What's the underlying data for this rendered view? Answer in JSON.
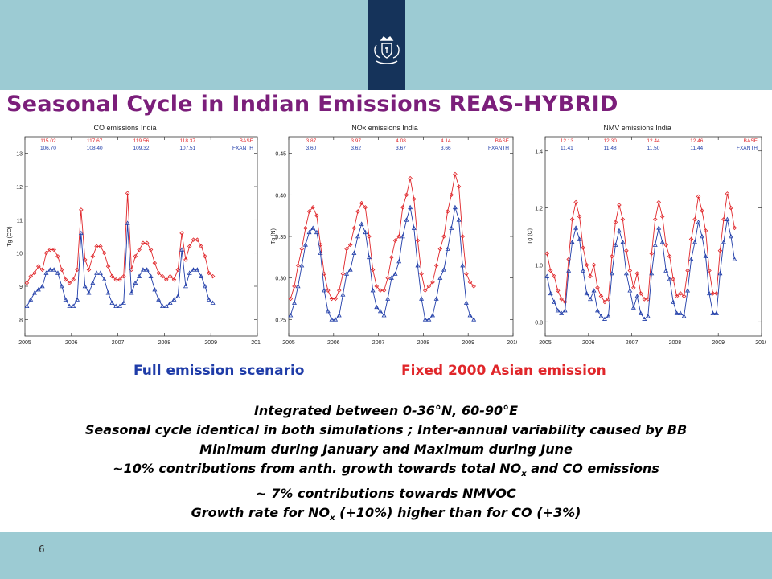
{
  "title": "Seasonal Cycle in Indian Emissions REAS-HYBRID",
  "page_number": "6",
  "legend": {
    "full": "Full emission scenario",
    "fixed": "Fixed 2000 Asian emission"
  },
  "notes": [
    "Integrated between 0-36°N, 60-90°E",
    "Seasonal cycle identical in both simulations ; Inter-annual variability caused by BB",
    "Minimum during January and Maximum during June",
    [
      "~10% contributions from anth. growth towards total NO",
      "x",
      " and CO emissions"
    ],
    "~ 7% contributions towards NMVOC",
    [
      "Growth rate for NO",
      "x",
      " (+10%) higher than for CO (+3%)"
    ]
  ],
  "colors": {
    "title": "#7b1e7a",
    "base": "#e0262a",
    "fxanth": "#1f3ca8",
    "band": "#9ccbd3",
    "logo": "#15335a"
  },
  "icons": {
    "logo": "royal-coat-of-arms-icon"
  },
  "chart_data": [
    {
      "type": "line",
      "title": "CO emissions India",
      "ylabel": "Tg (CO)",
      "xlim": [
        2005,
        2010
      ],
      "ylim": [
        7.5,
        13.5
      ],
      "yticks": [
        8,
        9,
        10,
        11,
        12,
        13
      ],
      "xticks": [
        2005,
        2006,
        2007,
        2008,
        2009,
        2010
      ],
      "annual_totals": {
        "BASE": [
          "115.02",
          "117.67",
          "119.56",
          "118.37"
        ],
        "FXANTH": [
          "106.70",
          "108.40",
          "109.32",
          "107.51"
        ]
      },
      "series": [
        {
          "name": "BASE",
          "values": [
            9.1,
            9.3,
            9.4,
            9.6,
            9.5,
            10.0,
            10.1,
            10.1,
            9.9,
            9.5,
            9.2,
            9.1,
            9.2,
            9.5,
            11.3,
            9.8,
            9.5,
            9.9,
            10.2,
            10.2,
            10.0,
            9.6,
            9.3,
            9.2,
            9.2,
            9.3,
            11.8,
            9.5,
            9.9,
            10.1,
            10.3,
            10.3,
            10.1,
            9.7,
            9.4,
            9.3,
            9.2,
            9.3,
            9.2,
            9.5,
            10.6,
            9.8,
            10.2,
            10.4,
            10.4,
            10.2,
            9.9,
            9.4,
            9.3
          ]
        },
        {
          "name": "FXANTH",
          "values": [
            8.4,
            8.6,
            8.8,
            8.9,
            9.0,
            9.4,
            9.5,
            9.5,
            9.4,
            9.0,
            8.6,
            8.4,
            8.4,
            8.6,
            10.6,
            9.0,
            8.8,
            9.1,
            9.4,
            9.4,
            9.2,
            8.8,
            8.5,
            8.4,
            8.4,
            8.5,
            10.9,
            8.8,
            9.1,
            9.3,
            9.5,
            9.5,
            9.3,
            8.9,
            8.6,
            8.4,
            8.4,
            8.5,
            8.6,
            8.7,
            10.1,
            9.0,
            9.4,
            9.5,
            9.5,
            9.3,
            9.0,
            8.6,
            8.5
          ]
        }
      ]
    },
    {
      "type": "line",
      "title": "NOx emissions India",
      "ylabel": "Tg (N)",
      "xlim": [
        2005,
        2010
      ],
      "ylim": [
        0.23,
        0.47
      ],
      "yticks": [
        0.25,
        0.3,
        0.35,
        0.4,
        0.45
      ],
      "xticks": [
        2005,
        2006,
        2007,
        2008,
        2009,
        2010
      ],
      "annual_totals": {
        "BASE": [
          "3.87",
          "3.97",
          "4.08",
          "4.14"
        ],
        "FXANTH": [
          "3.60",
          "3.62",
          "3.67",
          "3.66"
        ]
      },
      "series": [
        {
          "name": "BASE",
          "values": [
            0.275,
            0.29,
            0.315,
            0.335,
            0.36,
            0.38,
            0.385,
            0.375,
            0.34,
            0.305,
            0.285,
            0.275,
            0.275,
            0.285,
            0.305,
            0.335,
            0.34,
            0.36,
            0.38,
            0.39,
            0.385,
            0.35,
            0.31,
            0.29,
            0.285,
            0.285,
            0.3,
            0.325,
            0.345,
            0.35,
            0.385,
            0.4,
            0.42,
            0.395,
            0.345,
            0.305,
            0.285,
            0.29,
            0.295,
            0.315,
            0.335,
            0.35,
            0.38,
            0.4,
            0.425,
            0.41,
            0.35,
            0.305,
            0.295,
            0.29
          ]
        },
        {
          "name": "FXANTH",
          "values": [
            0.255,
            0.27,
            0.29,
            0.315,
            0.34,
            0.355,
            0.36,
            0.355,
            0.33,
            0.285,
            0.26,
            0.25,
            0.25,
            0.255,
            0.28,
            0.305,
            0.31,
            0.33,
            0.35,
            0.365,
            0.355,
            0.325,
            0.285,
            0.265,
            0.26,
            0.255,
            0.275,
            0.3,
            0.305,
            0.32,
            0.35,
            0.37,
            0.385,
            0.36,
            0.315,
            0.275,
            0.25,
            0.25,
            0.255,
            0.275,
            0.3,
            0.31,
            0.335,
            0.36,
            0.385,
            0.37,
            0.315,
            0.27,
            0.255,
            0.25
          ]
        }
      ]
    },
    {
      "type": "line",
      "title": "NMV emissions India",
      "ylabel": "Tg (C)",
      "xlim": [
        2005,
        2010
      ],
      "ylim": [
        0.75,
        1.45
      ],
      "yticks": [
        0.8,
        1.0,
        1.2,
        1.4
      ],
      "xticks": [
        2005,
        2006,
        2007,
        2008,
        2009,
        2010
      ],
      "annual_totals": {
        "BASE": [
          "12.13",
          "12.30",
          "12.44",
          "12.46"
        ],
        "FXANTH": [
          "11.41",
          "11.48",
          "11.50",
          "11.44"
        ]
      },
      "series": [
        {
          "name": "BASE",
          "values": [
            1.04,
            0.98,
            0.96,
            0.91,
            0.88,
            0.87,
            1.02,
            1.16,
            1.22,
            1.17,
            1.06,
            1.0,
            0.96,
            1.0,
            0.92,
            0.89,
            0.87,
            0.88,
            1.03,
            1.15,
            1.21,
            1.16,
            1.05,
            0.98,
            0.92,
            0.97,
            0.9,
            0.88,
            0.88,
            1.04,
            1.16,
            1.22,
            1.17,
            1.07,
            1.03,
            0.95,
            0.89,
            0.9,
            0.89,
            0.98,
            1.09,
            1.16,
            1.24,
            1.19,
            1.12,
            0.98,
            0.9,
            0.9,
            1.05,
            1.16,
            1.25,
            1.2,
            1.13
          ]
        },
        {
          "name": "FXANTH",
          "values": [
            0.96,
            0.9,
            0.87,
            0.84,
            0.83,
            0.84,
            0.98,
            1.08,
            1.13,
            1.09,
            0.98,
            0.9,
            0.88,
            0.91,
            0.84,
            0.82,
            0.81,
            0.82,
            0.97,
            1.07,
            1.12,
            1.08,
            0.97,
            0.91,
            0.85,
            0.89,
            0.83,
            0.81,
            0.82,
            0.97,
            1.07,
            1.13,
            1.08,
            0.98,
            0.95,
            0.87,
            0.83,
            0.83,
            0.82,
            0.91,
            1.02,
            1.08,
            1.15,
            1.1,
            1.03,
            0.9,
            0.83,
            0.83,
            0.97,
            1.08,
            1.16,
            1.1,
            1.02
          ]
        }
      ]
    }
  ]
}
